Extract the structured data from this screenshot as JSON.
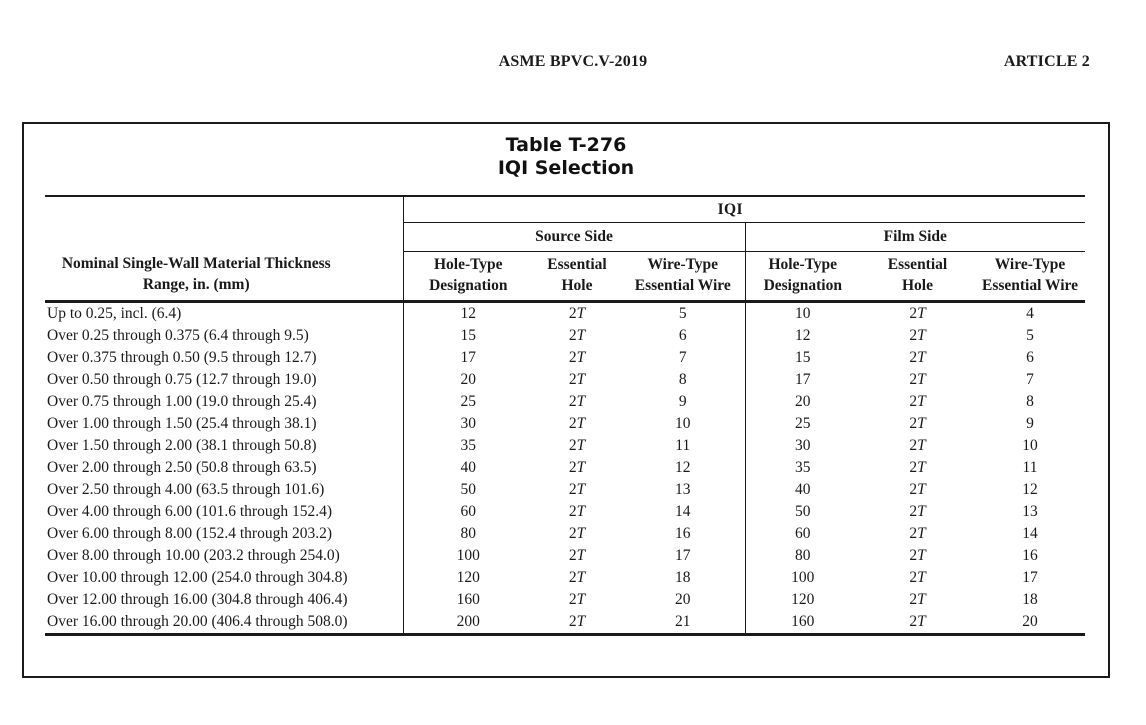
{
  "page_header": {
    "center_title": "ASME BPVC.V-2019",
    "right_title": "ARTICLE 2"
  },
  "table": {
    "title_line1": "Table T-276",
    "title_line2": "IQI Selection",
    "thickness_header": "Nominal Single-Wall Material Thickness\nRange, in. (mm)",
    "group_header": "IQI",
    "source_side_header": "Source Side",
    "film_side_header": "Film Side",
    "column_headers": {
      "source_hole_type": "Hole-Type\nDesignation",
      "source_essential_hole": "Essential\nHole",
      "source_wire_type": "Wire-Type\nEssential Wire",
      "film_hole_type": "Hole-Type\nDesignation",
      "film_essential_hole": "Essential\nHole",
      "film_wire_type": "Wire-Type\nEssential Wire"
    },
    "rows": [
      {
        "range": "Up to 0.25, incl. (6.4)",
        "source": [
          "12",
          "2T",
          "5"
        ],
        "film": [
          "10",
          "2T",
          "4"
        ]
      },
      {
        "range": "Over 0.25 through 0.375 (6.4 through 9.5)",
        "source": [
          "15",
          "2T",
          "6"
        ],
        "film": [
          "12",
          "2T",
          "5"
        ]
      },
      {
        "range": "Over 0.375 through 0.50 (9.5 through 12.7)",
        "source": [
          "17",
          "2T",
          "7"
        ],
        "film": [
          "15",
          "2T",
          "6"
        ]
      },
      {
        "range": "Over 0.50 through 0.75 (12.7 through 19.0)",
        "source": [
          "20",
          "2T",
          "8"
        ],
        "film": [
          "17",
          "2T",
          "7"
        ]
      },
      {
        "range": "Over 0.75 through 1.00 (19.0 through 25.4)",
        "source": [
          "25",
          "2T",
          "9"
        ],
        "film": [
          "20",
          "2T",
          "8"
        ]
      },
      {
        "range": "Over 1.00 through 1.50 (25.4 through 38.1)",
        "source": [
          "30",
          "2T",
          "10"
        ],
        "film": [
          "25",
          "2T",
          "9"
        ]
      },
      {
        "range": "Over 1.50 through 2.00 (38.1 through 50.8)",
        "source": [
          "35",
          "2T",
          "11"
        ],
        "film": [
          "30",
          "2T",
          "10"
        ]
      },
      {
        "range": "Over 2.00 through 2.50 (50.8 through 63.5)",
        "source": [
          "40",
          "2T",
          "12"
        ],
        "film": [
          "35",
          "2T",
          "11"
        ]
      },
      {
        "range": "Over 2.50 through 4.00 (63.5 through 101.6)",
        "source": [
          "50",
          "2T",
          "13"
        ],
        "film": [
          "40",
          "2T",
          "12"
        ]
      },
      {
        "range": "Over 4.00 through 6.00 (101.6 through 152.4)",
        "source": [
          "60",
          "2T",
          "14"
        ],
        "film": [
          "50",
          "2T",
          "13"
        ]
      },
      {
        "range": "Over 6.00 through 8.00 (152.4 through 203.2)",
        "source": [
          "80",
          "2T",
          "16"
        ],
        "film": [
          "60",
          "2T",
          "14"
        ]
      },
      {
        "range": "Over 8.00 through 10.00 (203.2 through 254.0)",
        "source": [
          "100",
          "2T",
          "17"
        ],
        "film": [
          "80",
          "2T",
          "16"
        ]
      },
      {
        "range": "Over 10.00 through 12.00 (254.0 through 304.8)",
        "source": [
          "120",
          "2T",
          "18"
        ],
        "film": [
          "100",
          "2T",
          "17"
        ]
      },
      {
        "range": "Over 12.00 through 16.00 (304.8 through 406.4)",
        "source": [
          "160",
          "2T",
          "20"
        ],
        "film": [
          "120",
          "2T",
          "18"
        ]
      },
      {
        "range": "Over 16.00 through 20.00 (406.4 through 508.0)",
        "source": [
          "200",
          "2T",
          "21"
        ],
        "film": [
          "160",
          "2T",
          "20"
        ]
      }
    ]
  }
}
